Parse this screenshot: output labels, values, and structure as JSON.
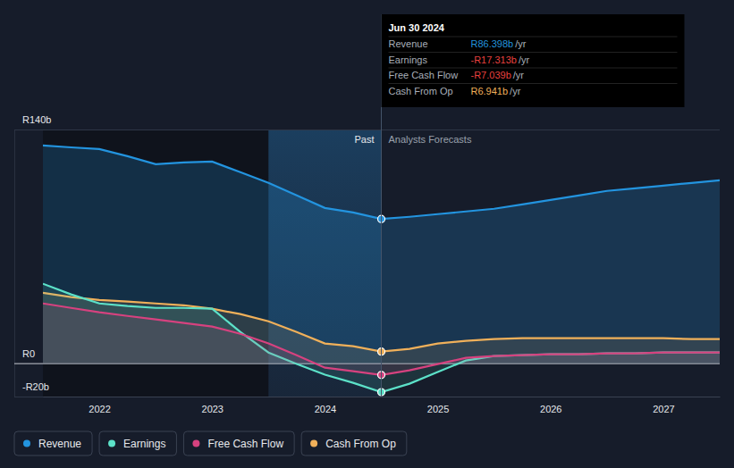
{
  "chart_data": {
    "type": "line",
    "x": [
      2021.5,
      2021.75,
      2022,
      2022.25,
      2022.5,
      2022.75,
      2023,
      2023.25,
      2023.5,
      2023.75,
      2024,
      2024.25,
      2024.5,
      2024.75,
      2025,
      2025.25,
      2025.5,
      2025.75,
      2026,
      2026.25,
      2026.5,
      2026.75,
      2027,
      2027.25,
      2027.5
    ],
    "xlim": [
      2021.5,
      2027.5
    ],
    "xticks": [
      2022,
      2023,
      2024,
      2025,
      2026,
      2027
    ],
    "ylim": [
      -20,
      140
    ],
    "yticks": [
      {
        "value": -20,
        "label": "-R20b"
      },
      {
        "value": 0,
        "label": "R0"
      },
      {
        "value": 140,
        "label": "R140b"
      }
    ],
    "grid": true,
    "series": [
      {
        "name": "Revenue",
        "color": "#2394df",
        "values": [
          130.4,
          129.3,
          128.3,
          124,
          119.2,
          120.3,
          120.8,
          114.4,
          108,
          100.5,
          93,
          90.3,
          86.398,
          87.7,
          89.3,
          90.9,
          92.5,
          95.1,
          97.8,
          100.5,
          103.2,
          104.8,
          106.4,
          108,
          109.6
        ]
      },
      {
        "name": "Earnings",
        "color": "#5ce1c8",
        "values": [
          47.6,
          41.2,
          35.8,
          34.2,
          33.1,
          33.1,
          32.6,
          18.7,
          6.4,
          -0.5,
          -6.9,
          -11.8,
          -17.313,
          -12.3,
          -5.3,
          1.6,
          4.3,
          4.8,
          5.3,
          5.3,
          5.9,
          5.9,
          6.4,
          6.4,
          6.4
        ]
      },
      {
        "name": "Free Cash Flow",
        "color": "#d6427f",
        "values": [
          35.8,
          33.1,
          30.5,
          28.3,
          26.2,
          24.1,
          21.9,
          17.6,
          11.8,
          4.8,
          -2.7,
          -4.8,
          -7.039,
          -4.3,
          -0.5,
          3.2,
          4.3,
          4.8,
          5.3,
          5.3,
          5.9,
          5.9,
          6.4,
          6.4,
          6.4
        ]
      },
      {
        "name": "Cash From Op",
        "color": "#f0b05a",
        "values": [
          42.2,
          39.6,
          37.9,
          36.9,
          35.8,
          34.7,
          32.6,
          29.4,
          25.1,
          18.7,
          11.8,
          10.2,
          6.941,
          8.6,
          11.8,
          13.4,
          14.4,
          15,
          15,
          15,
          15,
          15,
          15,
          14.4,
          14.4
        ]
      }
    ],
    "shaded_x": [
      2023.5,
      2024.5
    ],
    "cursor_x": 2024.5,
    "past_label": "Past",
    "forecast_label": "Analysts Forecasts",
    "tooltip": {
      "title": "Jun 30 2024",
      "rows": [
        {
          "label": "Revenue",
          "value": "R86.398b",
          "unit": "/yr",
          "color": "#2394df"
        },
        {
          "label": "Earnings",
          "value": "-R17.313b",
          "unit": "/yr",
          "color": "#e8413f"
        },
        {
          "label": "Free Cash Flow",
          "value": "-R7.039b",
          "unit": "/yr",
          "color": "#e8413f"
        },
        {
          "label": "Cash From Op",
          "value": "R6.941b",
          "unit": "/yr",
          "color": "#f0b05a"
        }
      ]
    }
  }
}
